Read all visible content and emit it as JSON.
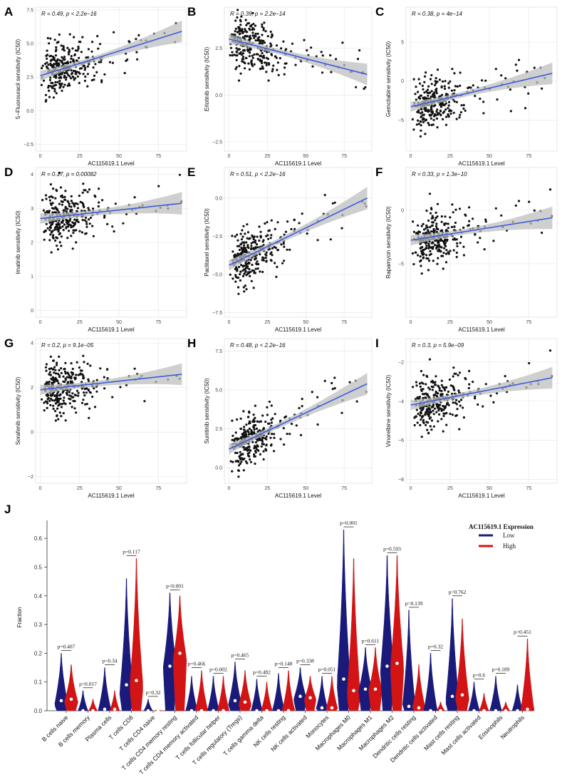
{
  "colors": {
    "line": "#3b5bdb",
    "band": "#bfbfbf",
    "point": "#111111",
    "low": "#1a1a7a",
    "high": "#d21414",
    "grid": "#e4e4e4"
  },
  "panels": [
    {
      "label": "A",
      "stat": "R = 0.49, p < 2.2e−16",
      "ylabel": "5−Fluorouracil sensitivity (IC50)",
      "xlabel": "AC115619.1 Level",
      "xticks": [
        "0",
        "25",
        "50",
        "75"
      ],
      "yticks": [
        "−2.5",
        "0.0",
        "2.5",
        "5.0",
        "7.5"
      ],
      "xlim": [
        -3,
        93
      ],
      "ylim": [
        -3,
        7.7
      ],
      "fit": [
        2.6,
        5.9
      ]
    },
    {
      "label": "B",
      "stat": "R = 0.39, p = 2.2e−14",
      "ylabel": "Erlotinib sensitivity (IC50)",
      "xlabel": "AC115619.1 Level",
      "xticks": [
        "0",
        "25",
        "50",
        "75"
      ],
      "yticks": [
        "−2.5",
        "0.0",
        "2.5"
      ],
      "xlim": [
        -3,
        93
      ],
      "ylim": [
        -3,
        4.7
      ],
      "fit": [
        3.0,
        1.1
      ]
    },
    {
      "label": "C",
      "stat": "R = 0.38, p = 4e−14",
      "ylabel": "Gemcitabine sensitivity (IC50)",
      "xlabel": "AC115619.1 Level",
      "xticks": [
        "0",
        "25",
        "50",
        "75"
      ],
      "yticks": [
        "−5",
        "0",
        "5"
      ],
      "xlim": [
        -3,
        93
      ],
      "ylim": [
        -9,
        9.5
      ],
      "fit": [
        -3.3,
        1.0
      ]
    },
    {
      "label": "D",
      "stat": "R = 0.17, p = 0.00082",
      "ylabel": "Imatinib sensitivity (IC50)",
      "xlabel": "AC115619.1 Level",
      "xticks": [
        "0",
        "25",
        "50",
        "75"
      ],
      "yticks": [
        "0",
        "1",
        "2",
        "3",
        "4"
      ],
      "xlim": [
        -3,
        93
      ],
      "ylim": [
        -0.2,
        4.2
      ],
      "fit": [
        2.7,
        3.15
      ]
    },
    {
      "label": "E",
      "stat": "R = 0.51, p < 2.2e−16",
      "ylabel": "Paclitaxel sensitivity (IC50)",
      "xlabel": "AC115619.1 Level",
      "xticks": [
        "0",
        "25",
        "50",
        "75"
      ],
      "yticks": [
        "−7.5",
        "−5.0",
        "−2.5",
        "0.0"
      ],
      "xlim": [
        -3,
        93
      ],
      "ylim": [
        -7.8,
        2
      ],
      "fit": [
        -4.4,
        0.0
      ]
    },
    {
      "label": "F",
      "stat": "R = 0.33, p = 1.3e−10",
      "ylabel": "Rapamycin sensitivity (IC50)",
      "xlabel": "AC115619.1 Level",
      "xticks": [
        "0",
        "25",
        "50",
        "75"
      ],
      "yticks": [
        "−5",
        "0"
      ],
      "xlim": [
        -3,
        93
      ],
      "ylim": [
        -10,
        4
      ],
      "fit": [
        -2.8,
        -0.7
      ]
    },
    {
      "label": "G",
      "stat": "R = 0.2, p = 9.1e−05",
      "ylabel": "Sorafenib sensitivity (IC50)",
      "xlabel": "AC115619.1 Level",
      "xticks": [
        "0",
        "25",
        "50",
        "75"
      ],
      "yticks": [
        "−2",
        "0",
        "2",
        "4"
      ],
      "xlim": [
        -3,
        93
      ],
      "ylim": [
        -2.3,
        4.2
      ],
      "fit": [
        1.9,
        2.6
      ]
    },
    {
      "label": "H",
      "stat": "R = 0.48, p < 2.2e−16",
      "ylabel": "Sunitinib sensitivity (IC50)",
      "xlabel": "AC115619.1 Level",
      "xticks": [
        "0",
        "25",
        "50",
        "75"
      ],
      "yticks": [
        "0.0",
        "2.5",
        "5.0",
        "7.5"
      ],
      "xlim": [
        -3,
        93
      ],
      "ylim": [
        -1,
        8.3
      ],
      "fit": [
        1.2,
        5.4
      ]
    },
    {
      "label": "I",
      "stat": "R = 0.3, p = 5.9e−09",
      "ylabel": "Vinorelbine sensitivity (IC50)",
      "xlabel": "AC115619.1 Level",
      "xticks": [
        "0",
        "25",
        "50",
        "75"
      ],
      "yticks": [
        "−8",
        "−6",
        "−4",
        "−2"
      ],
      "xlim": [
        -3,
        93
      ],
      "ylim": [
        -8.2,
        -0.8
      ],
      "fit": [
        -4.2,
        -2.8
      ]
    }
  ],
  "chart_data": {
    "type": "violin",
    "label": "J",
    "ylabel": "Fraction",
    "yticks": [
      "0.0",
      "0.1",
      "0.2",
      "0.3",
      "0.4",
      "0.5",
      "0.6"
    ],
    "ylim": [
      0,
      0.65
    ],
    "legend": {
      "title": "AC115619.1 Expression",
      "low": "Low",
      "high": "High"
    },
    "categories": [
      "B cells naive",
      "B cells memory",
      "Plasma cells",
      "T cells CD8",
      "T cells CD4 naive",
      "T cells CD4 memory resting",
      "T cells CD4 memory activated",
      "T cells follicular helper",
      "T cells regulatory (Tregs)",
      "T cells gamma delta",
      "NK cells resting",
      "NK cells activated",
      "Monocytes",
      "Macrophages M0",
      "Macrophages M1",
      "Macrophages M2",
      "Dendritic cells resting",
      "Dendritic cells activated",
      "Mast cells resting",
      "Mast cells activated",
      "Eosinophils",
      "Neutrophils"
    ],
    "pvalues": [
      "p=0.407",
      "p=0.017",
      "p=0.34",
      "p=0.117",
      "p=0.32",
      "p<0.001",
      "p=0.466",
      "p=0.002",
      "p=0.465",
      "p=0.482",
      "p=0.148",
      "p=0.338",
      "p=0.051",
      "p<0.001",
      "p=0.611",
      "p=0.593",
      "p=0.139",
      "p=0.32",
      "p=0.762",
      "p=0.6",
      "p=0.189",
      "p=0.451"
    ],
    "low_max": [
      0.2,
      0.07,
      0.15,
      0.46,
      0.04,
      0.41,
      0.12,
      0.12,
      0.17,
      0.11,
      0.13,
      0.15,
      0.12,
      0.63,
      0.22,
      0.54,
      0.35,
      0.2,
      0.39,
      0.1,
      0.12,
      0.09
    ],
    "high_max": [
      0.16,
      0.04,
      0.07,
      0.53,
      0.005,
      0.4,
      0.14,
      0.12,
      0.14,
      0.1,
      0.14,
      0.12,
      0.12,
      0.53,
      0.22,
      0.54,
      0.16,
      0.03,
      0.32,
      0.06,
      0.03,
      0.25
    ],
    "low_median": [
      0.035,
      0.0,
      0.005,
      0.09,
      0.0,
      0.155,
      0.0,
      0.0,
      0.035,
      0.0,
      0.0,
      0.05,
      0.01,
      0.11,
      0.075,
      0.155,
      0.015,
      0.0,
      0.05,
      0.0,
      0.0,
      0.0
    ],
    "high_median": [
      0.04,
      0.0,
      0.005,
      0.105,
      0.0,
      0.2,
      0.0,
      0.0,
      0.03,
      0.0,
      0.0,
      0.045,
      0.01,
      0.07,
      0.075,
      0.165,
      0.01,
      0.0,
      0.055,
      0.0,
      0.0,
      0.005
    ],
    "low_mode": [
      0.02,
      0.0,
      0.0,
      0.06,
      0.0,
      0.15,
      0.0,
      0.0,
      0.02,
      0.0,
      0.0,
      0.04,
      0.005,
      0.09,
      0.07,
      0.14,
      0.005,
      0.0,
      0.03,
      0.0,
      0.0,
      0.0
    ],
    "high_mode": [
      0.03,
      0.0,
      0.0,
      0.08,
      0.0,
      0.18,
      0.0,
      0.0,
      0.02,
      0.0,
      0.0,
      0.04,
      0.005,
      0.05,
      0.07,
      0.15,
      0.005,
      0.0,
      0.04,
      0.0,
      0.0,
      0.0
    ]
  }
}
